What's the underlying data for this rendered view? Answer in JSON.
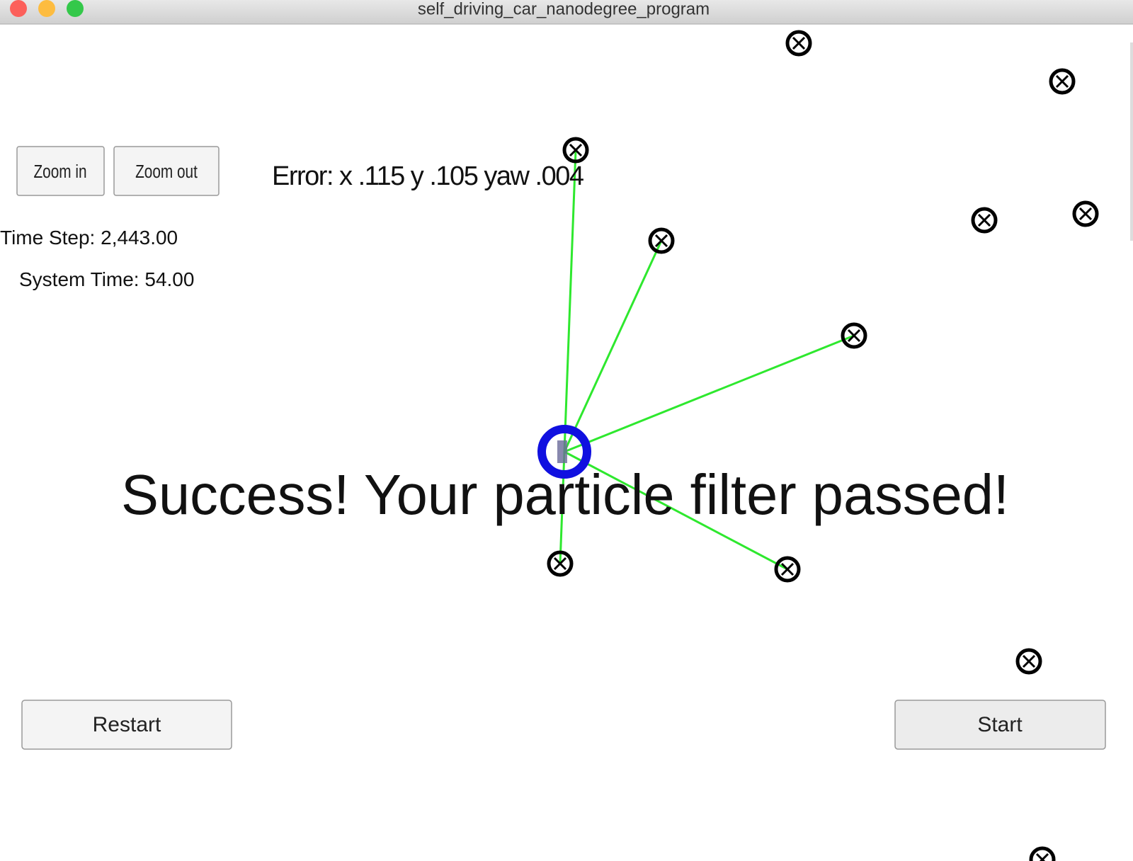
{
  "window": {
    "title": "self_driving_car_nanodegree_program"
  },
  "controls": {
    "zoom_in": "Zoom in",
    "zoom_out": "Zoom out",
    "restart": "Restart",
    "start": "Start"
  },
  "status": {
    "error": "Error: x .115 y .105 yaw .004",
    "time_step": "Time Step: 2,443.00",
    "system_time": "System Time: 54.00"
  },
  "message": "Success! Your particle filter passed!"
}
